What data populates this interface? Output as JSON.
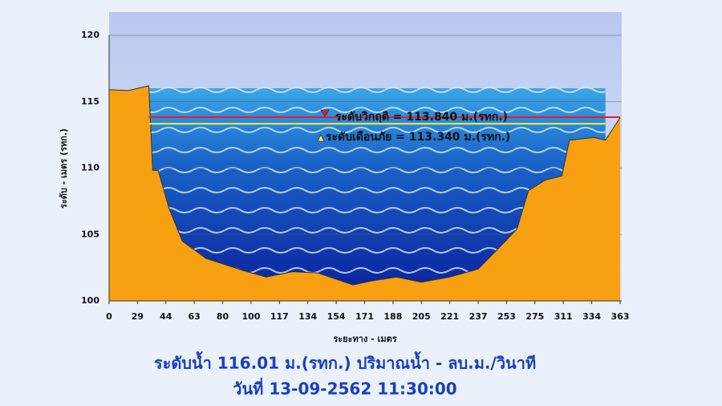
{
  "chart_data": {
    "type": "cross-section",
    "y_label": "ระดับ - เมตร (รทก.)",
    "x_label": "ระยะทาง - เมตร",
    "ylim": [
      100,
      120
    ],
    "yticks": [
      100,
      105,
      110,
      115,
      120
    ],
    "xlim": [
      0,
      363
    ],
    "xticks": [
      0,
      29,
      44,
      63,
      80,
      100,
      117,
      134,
      154,
      171,
      188,
      205,
      221,
      237,
      253,
      275,
      311,
      334,
      363
    ],
    "grid": true,
    "ground": {
      "color": "#f7a012",
      "x": [
        0,
        20,
        35,
        37,
        40,
        46,
        55,
        70,
        94,
        109,
        125,
        141,
        164,
        175,
        190,
        205,
        221,
        237,
        248,
        261,
        270,
        288,
        309,
        316,
        336,
        348,
        363
      ],
      "values": [
        115.9,
        115.85,
        116.2,
        109.85,
        109.8,
        107,
        104.5,
        103.2,
        102.3,
        101.8,
        102.2,
        102.1,
        101.2,
        101.5,
        101.8,
        101.4,
        101.8,
        102.4,
        103.9,
        105.4,
        108.3,
        109.1,
        109.4,
        112.1,
        112.3,
        112.1,
        113.8
      ]
    },
    "water_level": 116.01,
    "water_extent": [
      35,
      348
    ],
    "critical": {
      "label": "ระดับวิกฤติ = 113.840 ม.(รทก.)",
      "value": 113.84,
      "color": "#e0202a"
    },
    "warning": {
      "label": "ระดับเดือนภัย = 113.340 ม.(รทก.)",
      "value": 113.34,
      "color": "#f2f23a"
    },
    "footer": [
      "ระดับน้ำ 116.01 ม.(รทก.) ปริมาณน้ำ - ลบ.ม./วินาที",
      "วันที่ 13-09-2562 11:30:00"
    ]
  }
}
